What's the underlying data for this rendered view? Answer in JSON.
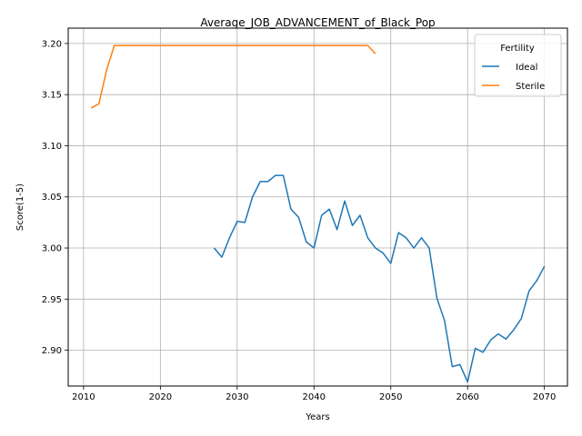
{
  "colors": {
    "ideal": "#1f77b4",
    "sterile": "#ff7f0e",
    "grid": "#b0b0b0"
  },
  "chart_data": {
    "type": "line",
    "title": "Average_JOB_ADVANCEMENT_of_Black_Pop",
    "xlabel": "Years",
    "ylabel": "Score(1-5)",
    "xlim": [
      2008,
      2073
    ],
    "ylim": [
      2.865,
      3.215
    ],
    "xticks": [
      2010,
      2020,
      2030,
      2040,
      2050,
      2060,
      2070
    ],
    "yticks": [
      2.9,
      2.95,
      3.0,
      3.05,
      3.1,
      3.15,
      3.2
    ],
    "xtick_labels": [
      "2010",
      "2020",
      "2030",
      "2040",
      "2050",
      "2060",
      "2070"
    ],
    "ytick_labels": [
      "2.90",
      "2.95",
      "3.00",
      "3.05",
      "3.10",
      "3.15",
      "3.20"
    ],
    "grid": true,
    "legend": {
      "title": "Fertility",
      "placement": "top-right"
    },
    "series": [
      {
        "name": "Ideal",
        "x": [
          2027,
          2028,
          2029,
          2030,
          2031,
          2032,
          2033,
          2034,
          2035,
          2036,
          2037,
          2038,
          2039,
          2040,
          2041,
          2042,
          2043,
          2044,
          2045,
          2046,
          2047,
          2048,
          2049,
          2050,
          2051,
          2052,
          2053,
          2054,
          2055,
          2056,
          2057,
          2058,
          2059,
          2060,
          2061,
          2062,
          2063,
          2064,
          2065,
          2066,
          2067,
          2068,
          2069,
          2070
        ],
        "y": [
          3.0,
          2.991,
          3.01,
          3.026,
          3.025,
          3.05,
          3.065,
          3.065,
          3.071,
          3.071,
          3.038,
          3.03,
          3.006,
          3.0,
          3.032,
          3.038,
          3.018,
          3.046,
          3.022,
          3.032,
          3.01,
          3.0,
          2.995,
          2.985,
          3.015,
          3.01,
          3.0,
          3.01,
          3.0,
          2.951,
          2.929,
          2.884,
          2.886,
          2.869,
          2.902,
          2.898,
          2.91,
          2.916,
          2.911,
          2.92,
          2.931,
          2.958,
          2.968,
          2.982
        ]
      },
      {
        "name": "Sterile",
        "x": [
          2011,
          2012,
          2013,
          2014,
          2015,
          2016,
          2017,
          2018,
          2019,
          2020,
          2021,
          2022,
          2023,
          2024,
          2025,
          2026,
          2027,
          2028,
          2029,
          2030,
          2031,
          2032,
          2033,
          2034,
          2035,
          2036,
          2037,
          2038,
          2039,
          2040,
          2041,
          2042,
          2043,
          2044,
          2045,
          2046,
          2047,
          2048
        ],
        "y": [
          3.137,
          3.141,
          3.174,
          3.198,
          3.198,
          3.198,
          3.198,
          3.198,
          3.198,
          3.198,
          3.198,
          3.198,
          3.198,
          3.198,
          3.198,
          3.198,
          3.198,
          3.198,
          3.198,
          3.198,
          3.198,
          3.198,
          3.198,
          3.198,
          3.198,
          3.198,
          3.198,
          3.198,
          3.198,
          3.198,
          3.198,
          3.198,
          3.198,
          3.198,
          3.198,
          3.198,
          3.198,
          3.19
        ]
      }
    ]
  }
}
